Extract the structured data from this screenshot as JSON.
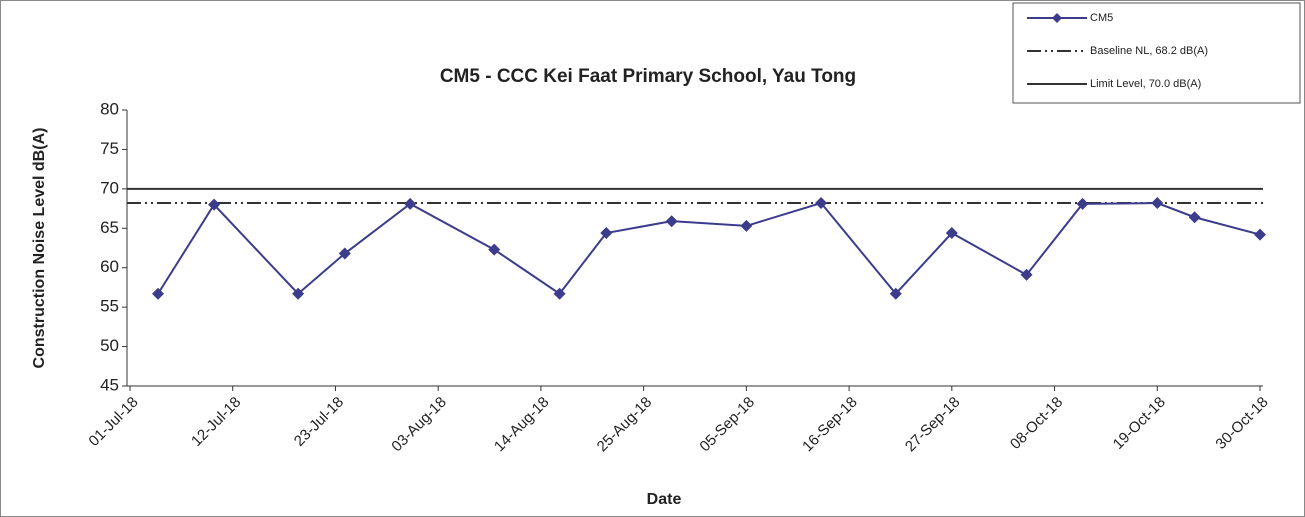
{
  "chart_data": {
    "type": "line",
    "title": "CM5 - CCC Kei Faat Primary School, Yau Tong",
    "x_label": "Date",
    "y_label": "Construction Noise Level  dB(A)",
    "x": [
      "04-Jul-18",
      "10-Jul-18",
      "19-Jul-18",
      "24-Jul-18",
      "31-Jul-18",
      "09-Aug-18",
      "16-Aug-18",
      "21-Aug-18",
      "28-Aug-18",
      "05-Sep-18",
      "13-Sep-18",
      "21-Sep-18",
      "27-Sep-18",
      "05-Oct-18",
      "11-Oct-18",
      "19-Oct-18",
      "23-Oct-18",
      "30-Oct-18"
    ],
    "series": [
      {
        "name": "CM5",
        "color": "#3c3c8c",
        "values": [
          56.7,
          68.0,
          56.7,
          61.8,
          68.1,
          62.3,
          56.7,
          64.4,
          65.9,
          65.3,
          68.2,
          56.7,
          64.4,
          59.1,
          68.1,
          68.2,
          66.4,
          64.2
        ]
      }
    ],
    "reference_lines": [
      {
        "name": "Baseline NL, 68.2 dB(A)",
        "value": 68.2,
        "color": "#333333",
        "dash": "dash-dot-dot"
      },
      {
        "name": "Limit Level,  70.0 dB(A)",
        "value": 70.0,
        "color": "#333333",
        "dash": "solid"
      }
    ],
    "xlim": [
      "01-Jul-18",
      "30-Oct-18"
    ],
    "xticks": [
      "01-Jul-18",
      "12-Jul-18",
      "23-Jul-18",
      "03-Aug-18",
      "14-Aug-18",
      "25-Aug-18",
      "05-Sep-18",
      "16-Sep-18",
      "27-Sep-18",
      "08-Oct-18",
      "19-Oct-18",
      "30-Oct-18"
    ],
    "ylim": [
      45,
      80
    ],
    "yticks": [
      45,
      50,
      55,
      60,
      65,
      70,
      75,
      80
    ],
    "legend": "top-right"
  }
}
